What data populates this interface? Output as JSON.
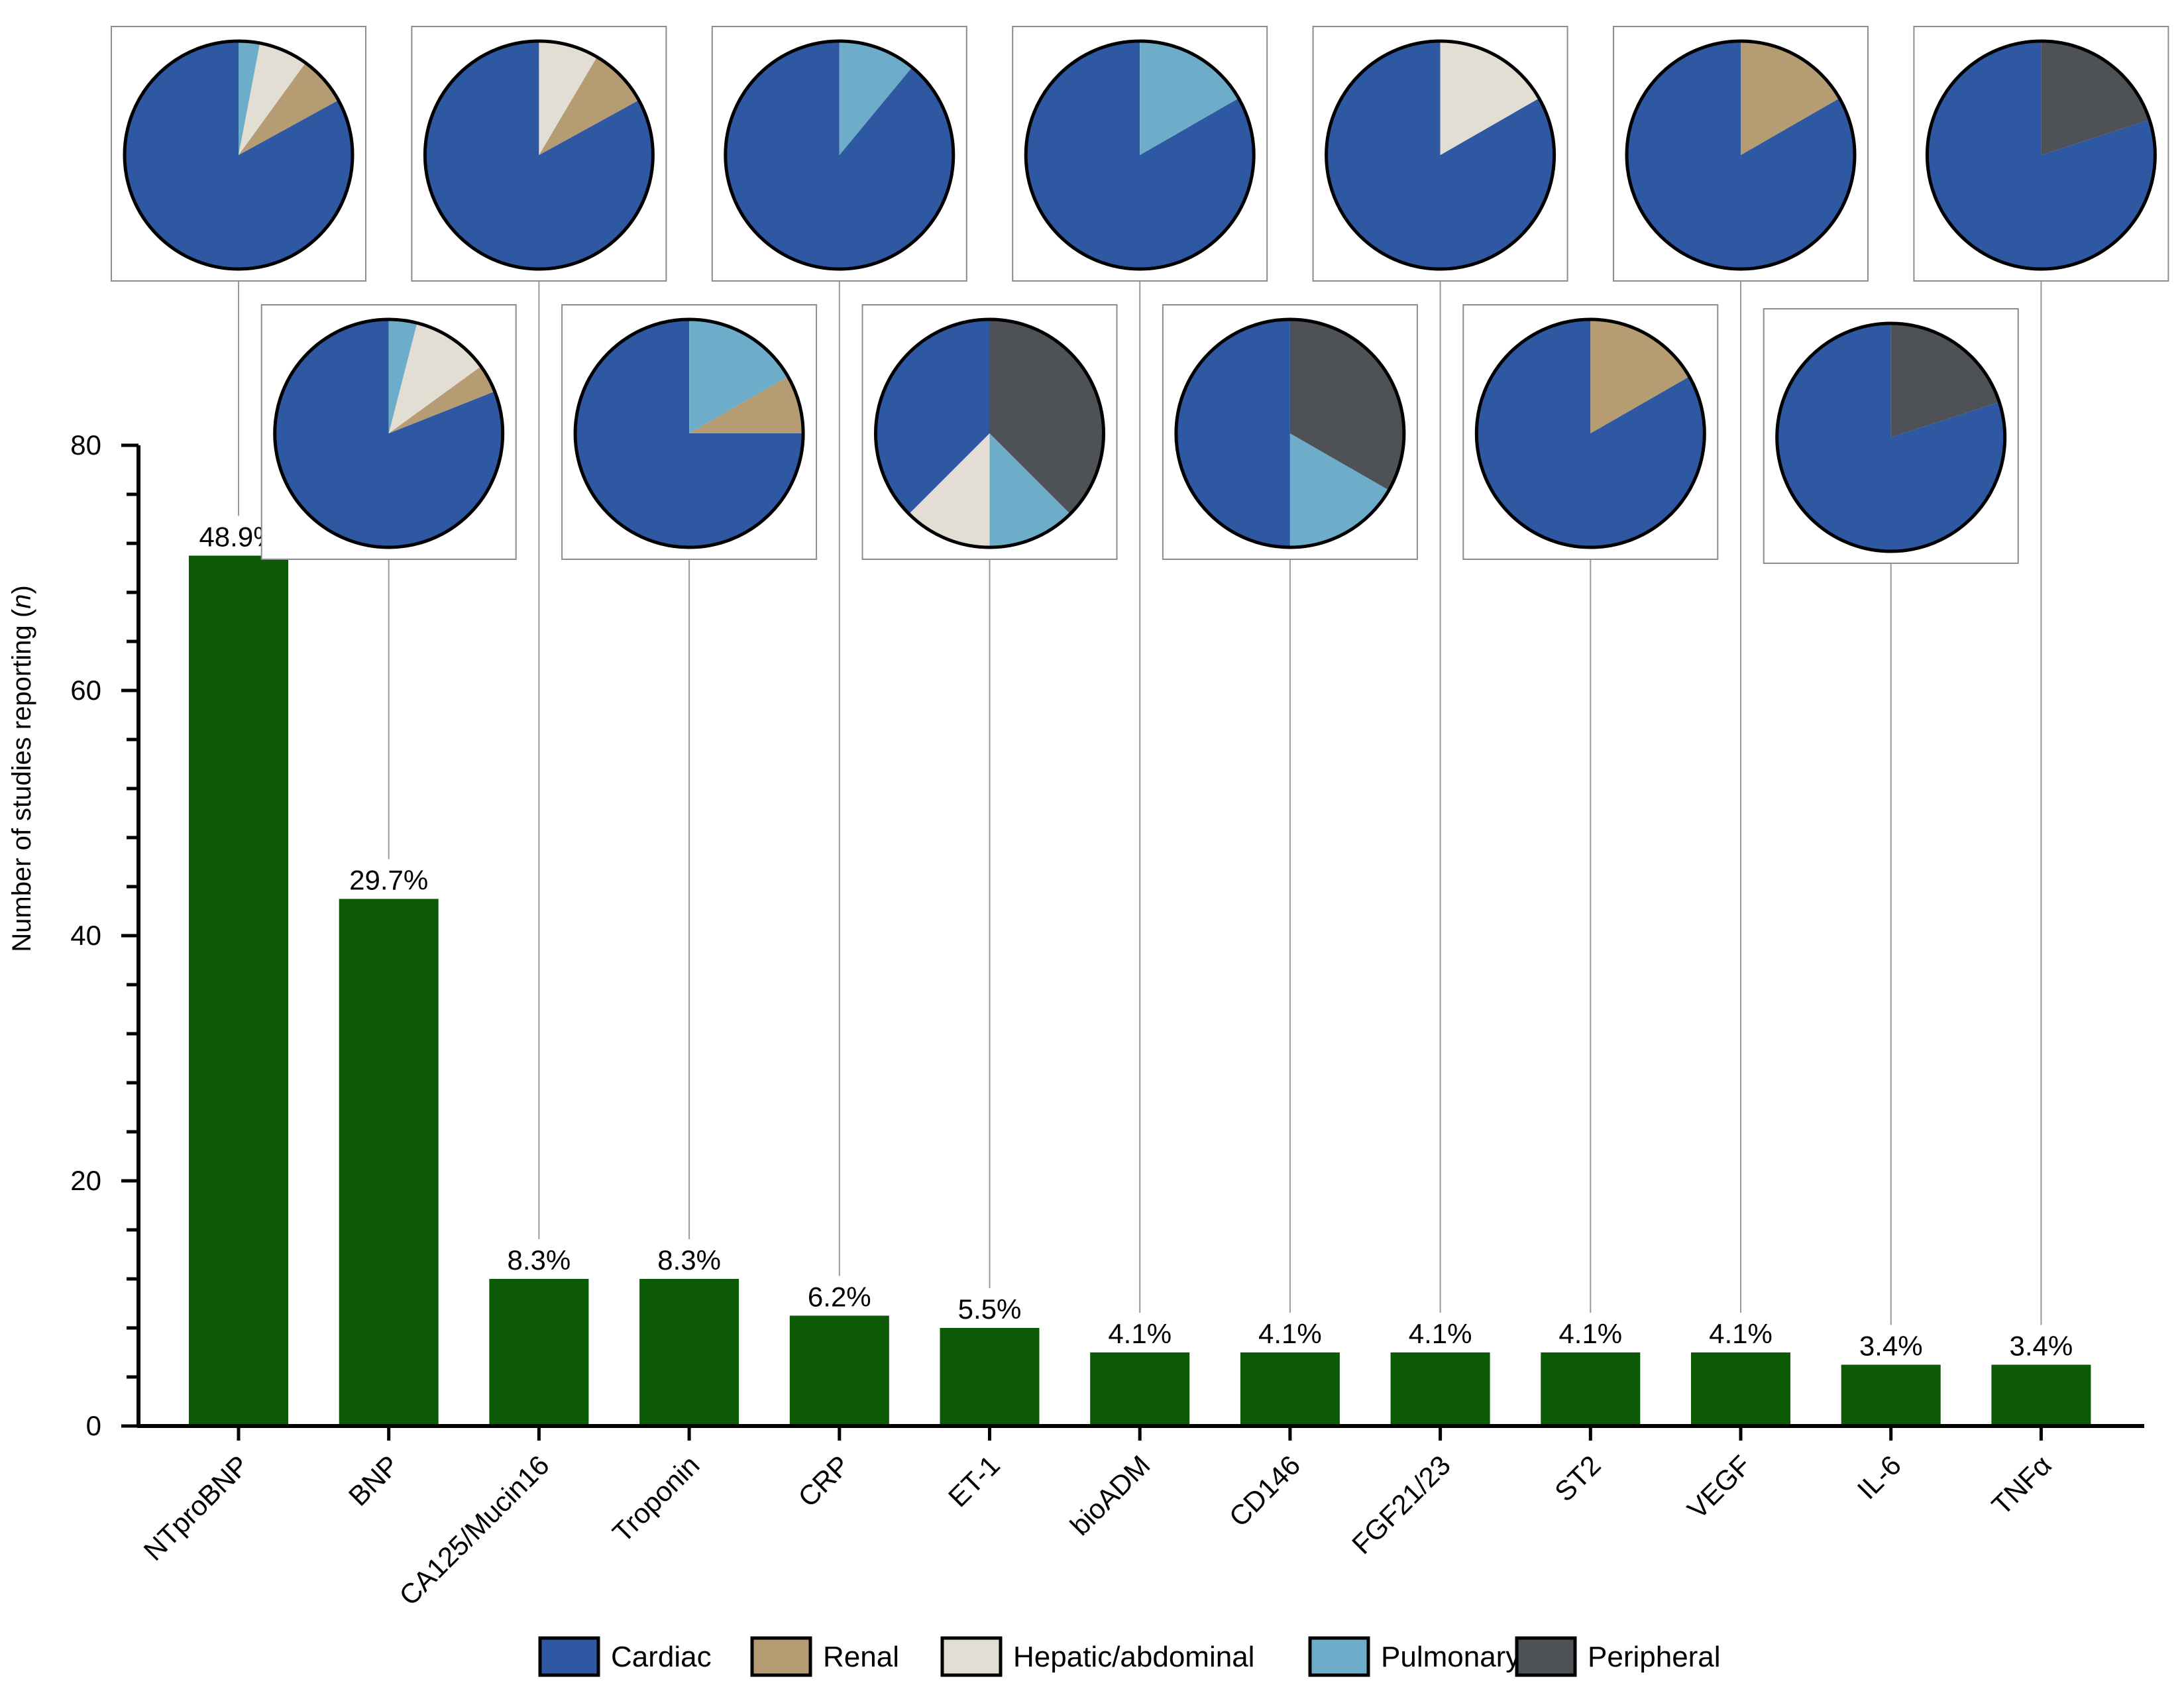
{
  "chart_data": {
    "type": "bar",
    "ylabel": "Number of studies reporting",
    "ylabel_italic": "n",
    "ylim": [
      0,
      80
    ],
    "yticks": [
      0,
      20,
      40,
      60,
      80
    ],
    "grid": false,
    "legend_position": "bottom",
    "categories": [
      "NTproBNP",
      "BNP",
      "CA125/Mucin16",
      "Troponin",
      "CRP",
      "ET-1",
      "bioADM",
      "CD146",
      "FGF21/23",
      "ST2",
      "VEGF",
      "IL-6",
      "TNFα"
    ],
    "values": [
      71,
      43,
      12,
      12,
      9,
      8,
      6,
      6,
      6,
      6,
      6,
      5,
      5
    ],
    "percent_labels": [
      "48.9%",
      "29.7%",
      "8.3%",
      "8.3%",
      "6.2%",
      "5.5%",
      "4.1%",
      "4.1%",
      "4.1%",
      "4.1%",
      "4.1%",
      "3.4%",
      "3.4%"
    ],
    "bar_color": "#0d5a06",
    "legend": [
      {
        "key": "cardiac",
        "label": "Cardiac",
        "color": "#2f58a3"
      },
      {
        "key": "renal",
        "label": "Renal",
        "color": "#b59c72"
      },
      {
        "key": "hepatic",
        "label": "Hepatic/abdominal",
        "color": "#e3ded3"
      },
      {
        "key": "pulmonary",
        "label": "Pulmonary",
        "color": "#6eadc9"
      },
      {
        "key": "peripheral",
        "label": "Peripheral",
        "color": "#4e5257"
      }
    ],
    "pies": [
      {
        "category": "NTproBNP",
        "row": "top",
        "slices": [
          {
            "key": "cardiac",
            "value": 0.83
          },
          {
            "key": "renal",
            "value": 0.07
          },
          {
            "key": "hepatic",
            "value": 0.07
          },
          {
            "key": "pulmonary",
            "value": 0.03
          }
        ]
      },
      {
        "category": "BNP",
        "row": "bottom",
        "slices": [
          {
            "key": "cardiac",
            "value": 0.81
          },
          {
            "key": "renal",
            "value": 0.04
          },
          {
            "key": "hepatic",
            "value": 0.11
          },
          {
            "key": "pulmonary",
            "value": 0.04
          }
        ]
      },
      {
        "category": "CA125/Mucin16",
        "row": "top",
        "slices": [
          {
            "key": "cardiac",
            "value": 0.83
          },
          {
            "key": "renal",
            "value": 0.085
          },
          {
            "key": "hepatic",
            "value": 0.085
          }
        ]
      },
      {
        "category": "Troponin",
        "row": "bottom",
        "slices": [
          {
            "key": "cardiac",
            "value": 0.75
          },
          {
            "key": "renal",
            "value": 0.083
          },
          {
            "key": "pulmonary",
            "value": 0.167
          }
        ]
      },
      {
        "category": "CRP",
        "row": "top",
        "slices": [
          {
            "key": "cardiac",
            "value": 0.89
          },
          {
            "key": "pulmonary",
            "value": 0.11
          }
        ]
      },
      {
        "category": "ET-1",
        "row": "bottom",
        "slices": [
          {
            "key": "cardiac",
            "value": 0.375
          },
          {
            "key": "hepatic",
            "value": 0.125
          },
          {
            "key": "pulmonary",
            "value": 0.125
          },
          {
            "key": "peripheral",
            "value": 0.375
          }
        ]
      },
      {
        "category": "bioADM",
        "row": "top",
        "slices": [
          {
            "key": "cardiac",
            "value": 0.833
          },
          {
            "key": "pulmonary",
            "value": 0.167
          }
        ]
      },
      {
        "category": "CD146",
        "row": "bottom",
        "slices": [
          {
            "key": "cardiac",
            "value": 0.5
          },
          {
            "key": "pulmonary",
            "value": 0.167
          },
          {
            "key": "peripheral",
            "value": 0.333
          }
        ]
      },
      {
        "category": "FGF21/23",
        "row": "top",
        "slices": [
          {
            "key": "cardiac",
            "value": 0.833
          },
          {
            "key": "hepatic",
            "value": 0.167
          }
        ]
      },
      {
        "category": "ST2",
        "row": "bottom",
        "slices": [
          {
            "key": "cardiac",
            "value": 0.833
          },
          {
            "key": "renal",
            "value": 0.167
          }
        ]
      },
      {
        "category": "VEGF",
        "row": "top",
        "slices": [
          {
            "key": "cardiac",
            "value": 0.833
          },
          {
            "key": "renal",
            "value": 0.167
          }
        ]
      },
      {
        "category": "IL-6",
        "row": "bottom",
        "slices": [
          {
            "key": "cardiac",
            "value": 0.8
          },
          {
            "key": "peripheral",
            "value": 0.2
          }
        ]
      },
      {
        "category": "TNFα",
        "row": "top",
        "slices": [
          {
            "key": "cardiac",
            "value": 0.8
          },
          {
            "key": "peripheral",
            "value": 0.2
          }
        ]
      }
    ]
  }
}
